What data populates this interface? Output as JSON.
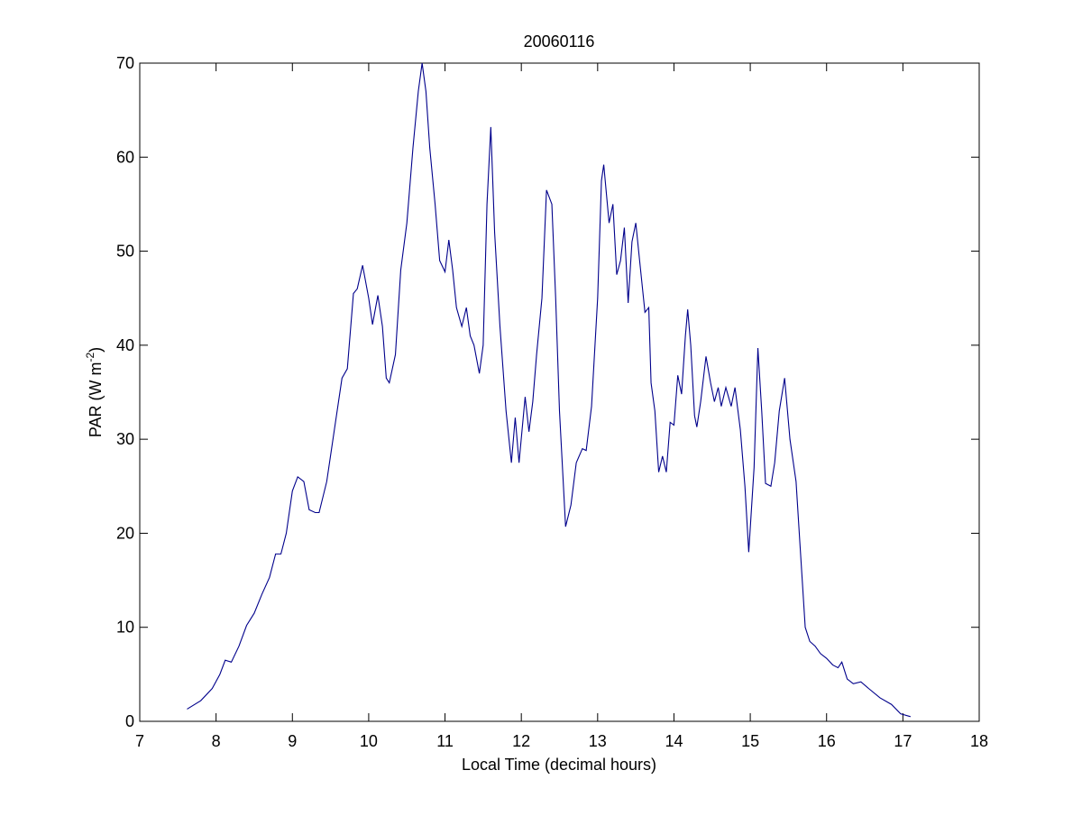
{
  "chart_data": {
    "type": "line",
    "title": "20060116",
    "xlabel": "Local Time (decimal hours)",
    "ylabel": {
      "text": "PAR (W m",
      "sup": "-2",
      "tail": ")"
    },
    "xlim": [
      7,
      18
    ],
    "xticks": [
      7,
      8,
      9,
      10,
      11,
      12,
      13,
      14,
      15,
      16,
      17,
      18
    ],
    "ylim": [
      0,
      70
    ],
    "yticks": [
      0,
      10,
      20,
      30,
      40,
      50,
      60,
      70
    ],
    "grid": false,
    "series": [
      {
        "color": "#00008b",
        "x": [
          7.62,
          7.8,
          7.95,
          8.05,
          8.12,
          8.2,
          8.3,
          8.4,
          8.5,
          8.6,
          8.7,
          8.78,
          8.85,
          8.92,
          9.0,
          9.07,
          9.15,
          9.22,
          9.3,
          9.35,
          9.45,
          9.55,
          9.65,
          9.72,
          9.8,
          9.85,
          9.92,
          10.0,
          10.05,
          10.12,
          10.18,
          10.23,
          10.27,
          10.35,
          10.42,
          10.5,
          10.58,
          10.65,
          10.7,
          10.75,
          10.8,
          10.87,
          10.93,
          11.0,
          11.05,
          11.1,
          11.15,
          11.22,
          11.28,
          11.33,
          11.38,
          11.45,
          11.5,
          11.55,
          11.6,
          11.65,
          11.72,
          11.8,
          11.87,
          11.92,
          11.97,
          12.05,
          12.1,
          12.15,
          12.2,
          12.27,
          12.33,
          12.4,
          12.45,
          12.5,
          12.58,
          12.65,
          12.72,
          12.8,
          12.85,
          12.92,
          13.0,
          13.05,
          13.08,
          13.15,
          13.2,
          13.25,
          13.3,
          13.35,
          13.4,
          13.45,
          13.5,
          13.55,
          13.62,
          13.67,
          13.7,
          13.75,
          13.8,
          13.85,
          13.9,
          13.95,
          14.0,
          14.05,
          14.1,
          14.15,
          14.18,
          14.22,
          14.27,
          14.3,
          14.35,
          14.42,
          14.48,
          14.53,
          14.58,
          14.62,
          14.68,
          14.75,
          14.8,
          14.87,
          14.93,
          14.98,
          15.05,
          15.1,
          15.15,
          15.2,
          15.27,
          15.32,
          15.38,
          15.45,
          15.52,
          15.6,
          15.65,
          15.72,
          15.78,
          15.85,
          15.92,
          16.0,
          16.08,
          16.15,
          16.2,
          16.27,
          16.35,
          16.45,
          16.55,
          16.7,
          16.85,
          16.97,
          17.1
        ],
        "values": [
          1.3,
          2.2,
          3.5,
          5,
          6.5,
          6.3,
          8,
          10.2,
          11.5,
          13.5,
          15.3,
          17.8,
          17.8,
          20,
          24.5,
          26,
          25.5,
          22.5,
          22.2,
          22.2,
          25.5,
          31,
          36.5,
          37.5,
          45.5,
          46,
          48.5,
          45,
          42.2,
          45.3,
          42,
          36.5,
          36,
          39,
          48,
          53,
          61,
          67,
          70,
          67,
          61,
          55,
          49,
          47.8,
          51.2,
          48,
          44,
          42,
          44,
          41,
          40,
          37,
          40,
          55,
          63.2,
          52,
          42,
          33,
          27.5,
          32.3,
          27.5,
          34.5,
          30.8,
          34,
          39,
          45,
          56.5,
          55,
          45,
          33,
          20.7,
          23,
          27.5,
          29,
          28.8,
          33.5,
          45,
          57.5,
          59.2,
          53,
          55,
          47.5,
          49,
          52.5,
          44.5,
          51,
          53,
          49,
          43.5,
          44,
          36,
          33,
          26.5,
          28.2,
          26.5,
          31.8,
          31.5,
          36.8,
          34.8,
          41,
          43.8,
          40,
          32.5,
          31.3,
          34,
          38.8,
          36,
          34,
          35.5,
          33.5,
          35.5,
          33.5,
          35.5,
          31,
          25,
          18,
          27,
          39.7,
          33,
          25.3,
          25,
          27.5,
          33,
          36.5,
          30,
          25.5,
          19,
          10,
          8.5,
          8,
          7.2,
          6.7,
          6.0,
          5.7,
          6.3,
          4.5,
          4.0,
          4.2,
          3.5,
          2.5,
          1.8,
          0.8,
          0.5
        ]
      }
    ]
  }
}
